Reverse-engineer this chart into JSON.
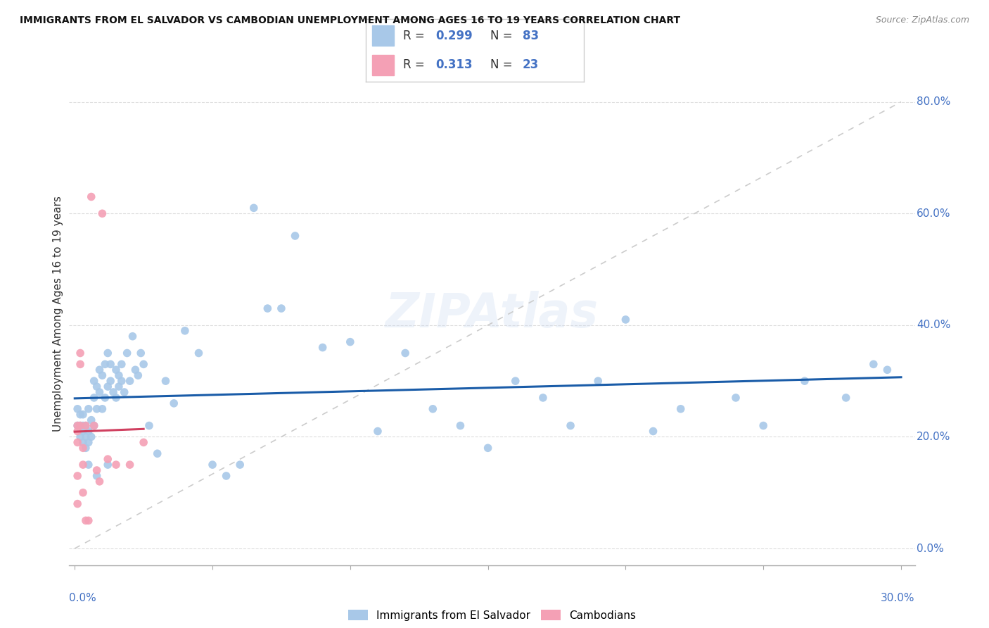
{
  "title": "IMMIGRANTS FROM EL SALVADOR VS CAMBODIAN UNEMPLOYMENT AMONG AGES 16 TO 19 YEARS CORRELATION CHART",
  "source": "Source: ZipAtlas.com",
  "ylabel": "Unemployment Among Ages 16 to 19 years",
  "xlim": [
    -0.002,
    0.305
  ],
  "ylim": [
    -0.03,
    0.87
  ],
  "right_yticks": [
    0.0,
    0.2,
    0.4,
    0.6,
    0.8
  ],
  "right_yticklabels": [
    "0.0%",
    "20.0%",
    "40.0%",
    "60.0%",
    "80.0%"
  ],
  "blue_scatter_color": "#a8c8e8",
  "pink_scatter_color": "#f4a0b5",
  "blue_line_color": "#1a5ca8",
  "pink_line_color": "#d04060",
  "diag_color": "#cccccc",
  "grid_color": "#dddddd",
  "legend_label1": "Immigrants from El Salvador",
  "legend_label2": "Cambodians",
  "blue_R": "0.299",
  "blue_N": "83",
  "pink_R": "0.313",
  "pink_N": "23",
  "blue_x": [
    0.001,
    0.001,
    0.002,
    0.002,
    0.002,
    0.003,
    0.003,
    0.003,
    0.003,
    0.004,
    0.004,
    0.004,
    0.005,
    0.005,
    0.005,
    0.006,
    0.006,
    0.007,
    0.007,
    0.007,
    0.008,
    0.008,
    0.009,
    0.009,
    0.01,
    0.01,
    0.011,
    0.011,
    0.012,
    0.012,
    0.013,
    0.013,
    0.014,
    0.015,
    0.015,
    0.016,
    0.016,
    0.017,
    0.017,
    0.018,
    0.019,
    0.02,
    0.021,
    0.022,
    0.023,
    0.024,
    0.025,
    0.027,
    0.03,
    0.033,
    0.036,
    0.04,
    0.045,
    0.05,
    0.055,
    0.06,
    0.065,
    0.07,
    0.075,
    0.08,
    0.09,
    0.1,
    0.11,
    0.12,
    0.13,
    0.14,
    0.15,
    0.16,
    0.17,
    0.18,
    0.19,
    0.2,
    0.21,
    0.22,
    0.24,
    0.25,
    0.265,
    0.28,
    0.29,
    0.295,
    0.005,
    0.008,
    0.012
  ],
  "blue_y": [
    0.22,
    0.25,
    0.2,
    0.24,
    0.22,
    0.19,
    0.22,
    0.24,
    0.21,
    0.2,
    0.22,
    0.18,
    0.21,
    0.19,
    0.25,
    0.2,
    0.23,
    0.3,
    0.27,
    0.22,
    0.25,
    0.29,
    0.32,
    0.28,
    0.31,
    0.25,
    0.33,
    0.27,
    0.35,
    0.29,
    0.3,
    0.33,
    0.28,
    0.32,
    0.27,
    0.31,
    0.29,
    0.33,
    0.3,
    0.28,
    0.35,
    0.3,
    0.38,
    0.32,
    0.31,
    0.35,
    0.33,
    0.22,
    0.17,
    0.3,
    0.26,
    0.39,
    0.35,
    0.15,
    0.13,
    0.15,
    0.61,
    0.43,
    0.43,
    0.56,
    0.36,
    0.37,
    0.21,
    0.35,
    0.25,
    0.22,
    0.18,
    0.3,
    0.27,
    0.22,
    0.3,
    0.41,
    0.21,
    0.25,
    0.27,
    0.22,
    0.3,
    0.27,
    0.33,
    0.32,
    0.15,
    0.13,
    0.15
  ],
  "pink_x": [
    0.001,
    0.001,
    0.001,
    0.001,
    0.001,
    0.002,
    0.002,
    0.002,
    0.003,
    0.003,
    0.003,
    0.004,
    0.004,
    0.005,
    0.006,
    0.007,
    0.008,
    0.009,
    0.01,
    0.012,
    0.015,
    0.02,
    0.025
  ],
  "pink_y": [
    0.22,
    0.21,
    0.19,
    0.13,
    0.08,
    0.35,
    0.33,
    0.22,
    0.18,
    0.15,
    0.1,
    0.22,
    0.05,
    0.05,
    0.63,
    0.22,
    0.14,
    0.12,
    0.6,
    0.16,
    0.15,
    0.15,
    0.19
  ],
  "figsize": [
    14.06,
    8.92
  ],
  "dpi": 100
}
